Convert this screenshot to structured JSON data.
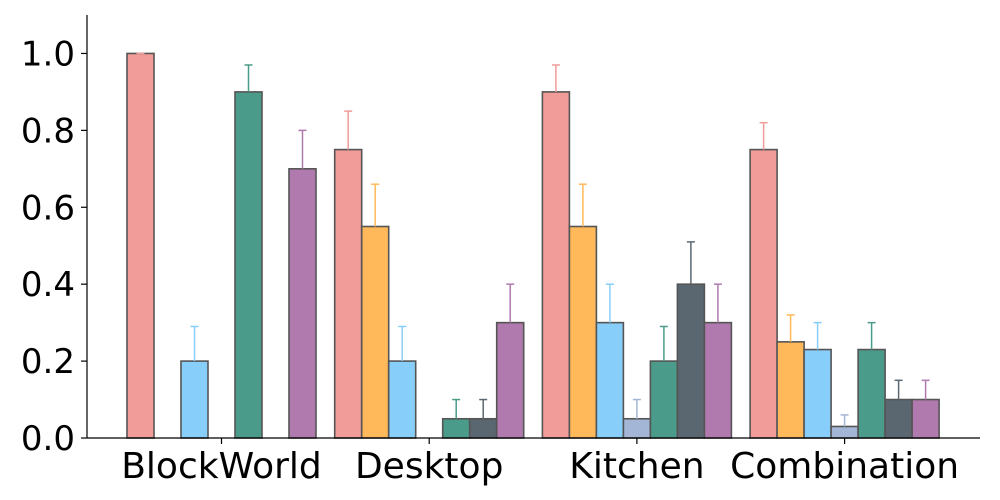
{
  "chart_data": {
    "type": "bar",
    "title": "",
    "xlabel": "",
    "ylabel": "",
    "ylim": [
      0,
      1.1
    ],
    "yticks": [
      "0.0",
      "0.2",
      "0.4",
      "0.6",
      "0.8",
      "1.0"
    ],
    "categories": [
      "BlockWorld",
      "Desktop",
      "Kitchen",
      "Combination"
    ],
    "series": [
      {
        "color": "#F19C99",
        "values": [
          1.0,
          0.75,
          0.9,
          0.75
        ],
        "errors": [
          0.0,
          0.1,
          0.07,
          0.07
        ]
      },
      {
        "color": "#FFB95A",
        "values": [
          0.0,
          0.55,
          0.55,
          0.25
        ],
        "errors": [
          0.0,
          0.11,
          0.11,
          0.07
        ]
      },
      {
        "color": "#87CEFA",
        "values": [
          0.2,
          0.2,
          0.3,
          0.23
        ],
        "errors": [
          0.09,
          0.09,
          0.1,
          0.07
        ]
      },
      {
        "color": "#A4B6D6",
        "values": [
          0.0,
          0.0,
          0.05,
          0.03
        ],
        "errors": [
          0.0,
          0.0,
          0.05,
          0.03
        ]
      },
      {
        "color": "#4B9B8A",
        "values": [
          0.9,
          0.05,
          0.2,
          0.23
        ],
        "errors": [
          0.07,
          0.05,
          0.09,
          0.07
        ]
      },
      {
        "color": "#5B6770",
        "values": [
          0.0,
          0.05,
          0.4,
          0.1
        ],
        "errors": [
          0.0,
          0.05,
          0.11,
          0.05
        ]
      },
      {
        "color": "#B07AAE",
        "values": [
          0.7,
          0.3,
          0.3,
          0.1
        ],
        "errors": [
          0.1,
          0.1,
          0.1,
          0.05
        ]
      }
    ],
    "grid": false,
    "legend": "none"
  }
}
